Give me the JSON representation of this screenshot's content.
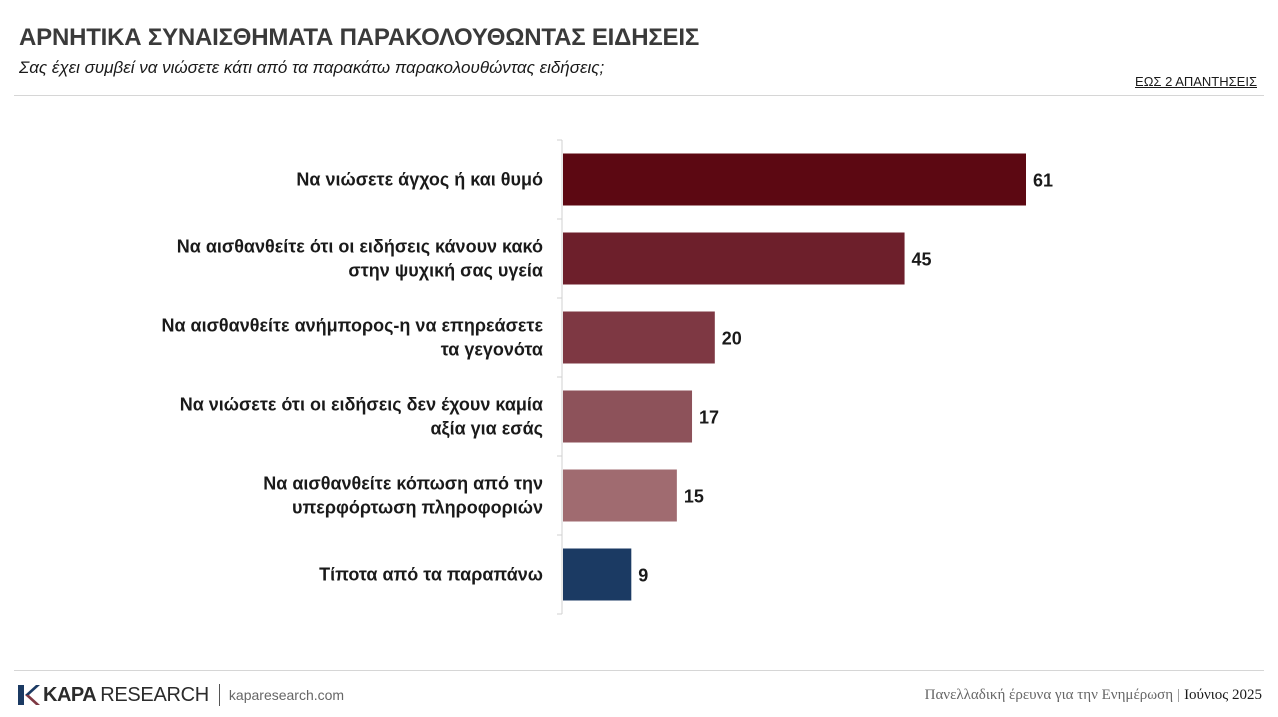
{
  "header": {
    "title": "ΑΡΝΗΤΙΚΑ ΣΥΝΑΙΣΘΗΜΑΤΑ ΠΑΡΑΚΟΛΟΥΘΩΝΤΑΣ ΕΙΔΗΣΕΙΣ",
    "subtitle": "Σας έχει συμβεί να νιώσετε κάτι από τα παρακάτω παρακολουθώντας ειδήσεις;",
    "note": "ΕΩΣ 2 ΑΠΑΝΤΗΣΕΙΣ"
  },
  "chart_data": {
    "type": "bar",
    "orientation": "horizontal",
    "categories": [
      [
        "Να νιώσετε άγχος ή και θυμό"
      ],
      [
        "Να αισθανθείτε ότι οι ειδήσεις κάνουν κακό",
        "στην ψυχική σας υγεία"
      ],
      [
        "Να αισθανθείτε ανήμπορος-η να επηρεάσετε",
        "τα γεγονότα"
      ],
      [
        "Να νιώσετε ότι οι ειδήσεις δεν έχουν καμία",
        "αξία για εσάς"
      ],
      [
        "Να αισθανθείτε κόπωση από την",
        "υπερφόρτωση πληροφοριών"
      ],
      [
        "Τίποτα από τα παραπάνω"
      ]
    ],
    "values": [
      61,
      45,
      20,
      17,
      15,
      9
    ],
    "colors": [
      "#5c0812",
      "#6d1f2b",
      "#7e3843",
      "#8d525a",
      "#a06b70",
      "#1b3a63"
    ],
    "xlim": [
      0,
      100
    ],
    "grid": false,
    "legend": "none"
  },
  "footer": {
    "logo_kapa": "KAPA",
    "logo_research": "RESEARCH",
    "url": "kaparesearch.com",
    "survey": "Πανελλαδική έρευνα για την Ενημέρωση",
    "separator": "|",
    "date": "Ιούνιος 2025",
    "logo_colors": [
      "#1b3a63",
      "#7e3843"
    ]
  }
}
